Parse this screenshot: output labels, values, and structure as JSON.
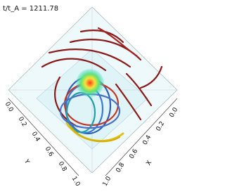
{
  "time_label": "t/t_A = 1211.78",
  "axes": {
    "y": {
      "label": "Y",
      "ticks": [
        "0.0",
        "0.2",
        "0.4",
        "0.6",
        "0.8",
        "1.0"
      ]
    },
    "x": {
      "label": "X",
      "ticks": [
        "0.0",
        "0.2",
        "0.4",
        "0.6",
        "0.8",
        "1.0"
      ]
    }
  }
}
